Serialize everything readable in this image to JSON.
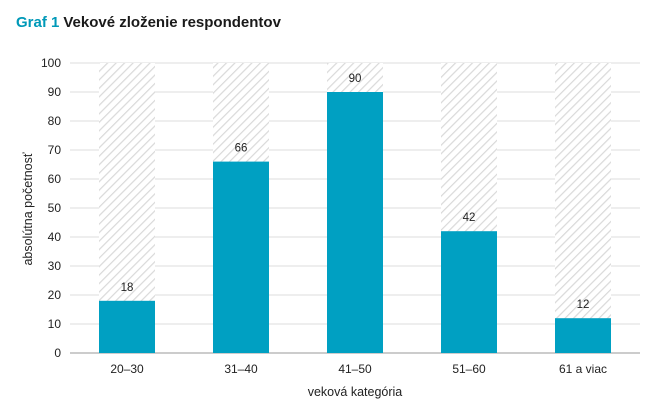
{
  "title": {
    "number": "Graf 1",
    "text": "Vekové zloženie respondentov"
  },
  "colors": {
    "accent": "#0099b8",
    "bar": "#00a0c2",
    "hatch": "#d9d9d9",
    "grid": "#dddddd"
  },
  "chart_data": {
    "type": "bar",
    "categories": [
      "20–30",
      "31–40",
      "41–50",
      "51–60",
      "61 a viac"
    ],
    "values": [
      18,
      66,
      90,
      42,
      12
    ],
    "data_labels": [
      "18",
      "66",
      "90",
      "42",
      "12"
    ],
    "xlabel": "veková kategória",
    "ylabel": "absolútna početnosť",
    "ylim": [
      0,
      100
    ],
    "yticks": [
      0,
      10,
      20,
      30,
      40,
      50,
      60,
      70,
      80,
      90,
      100
    ],
    "background_bars": "hatched to 100",
    "grid": true
  }
}
